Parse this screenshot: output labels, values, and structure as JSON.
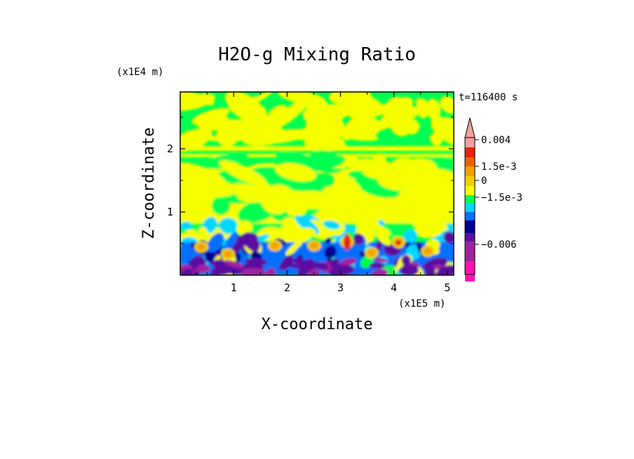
{
  "chart_data": {
    "type": "heatmap",
    "title": "H2O-g Mixing Ratio",
    "xlabel": "X-coordinate",
    "ylabel": "Z-coordinate",
    "x_units": "(x1E5 m)",
    "y_units": "(x1E4 m)",
    "time_label": "t=116400 s",
    "xlim": [
      0,
      5.12
    ],
    "ylim": [
      0,
      2.9
    ],
    "x_ticks": [
      "1",
      "2",
      "3",
      "4",
      "5"
    ],
    "y_ticks": [
      "1",
      "2"
    ],
    "colorbar": {
      "labels": [
        "0.004",
        "1.5e-3",
        "0",
        "−1.5e-3",
        "−0.006"
      ],
      "label_values": [
        0.004,
        0.0015,
        0,
        -0.0015,
        -0.006
      ],
      "levels": [
        {
          "min": 0.003,
          "color": "#f0a0a0"
        },
        {
          "min": 0.0025,
          "color": "#e82010"
        },
        {
          "min": 0.002,
          "color": "#f06000"
        },
        {
          "min": 0.0015,
          "color": "#f0a000"
        },
        {
          "min": 0.001,
          "color": "#f0d000"
        },
        {
          "min": 0.0005,
          "color": "#f5ff00"
        },
        {
          "min": 0.0,
          "color": "#00ff50"
        },
        {
          "min": -0.0005,
          "color": "#00d8ff"
        },
        {
          "min": -0.001,
          "color": "#0070ff"
        },
        {
          "min": -0.0015,
          "color": "#000090"
        },
        {
          "min": -0.003,
          "color": "#5a10a0"
        },
        {
          "min": -0.0045,
          "color": "#a020a0"
        },
        {
          "min": -0.0075,
          "color": "#ff10b0"
        }
      ]
    }
  }
}
